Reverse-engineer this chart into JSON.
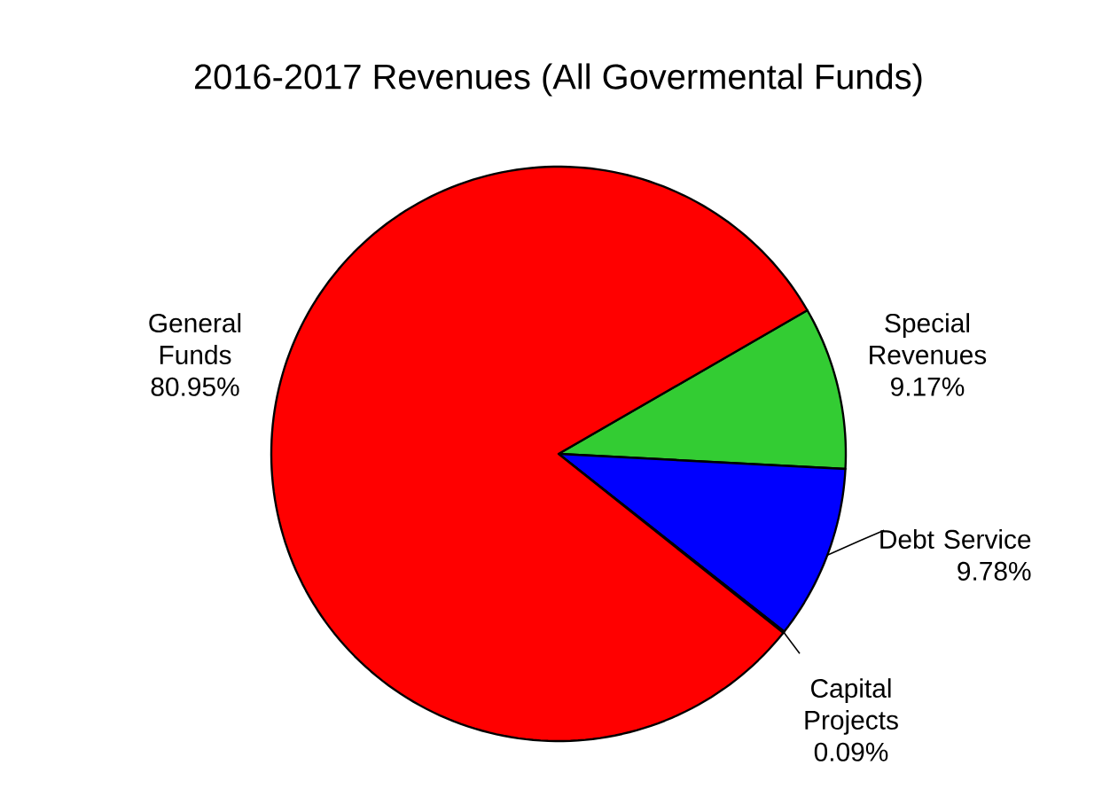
{
  "chart_data": {
    "type": "pie",
    "title": "2016-2017 Revenues (All Govermental Funds)",
    "categories": [
      "Special Revenues",
      "Debt Service",
      "Capital Projects",
      "General Funds"
    ],
    "values": [
      9.17,
      9.78,
      0.09,
      80.95
    ],
    "value_labels": [
      "9.17%",
      "9.78%",
      "0.09%",
      "80.95%"
    ],
    "colors": [
      "#33cc33",
      "#0000ff",
      "#ff0000",
      "#ff0000"
    ]
  }
}
